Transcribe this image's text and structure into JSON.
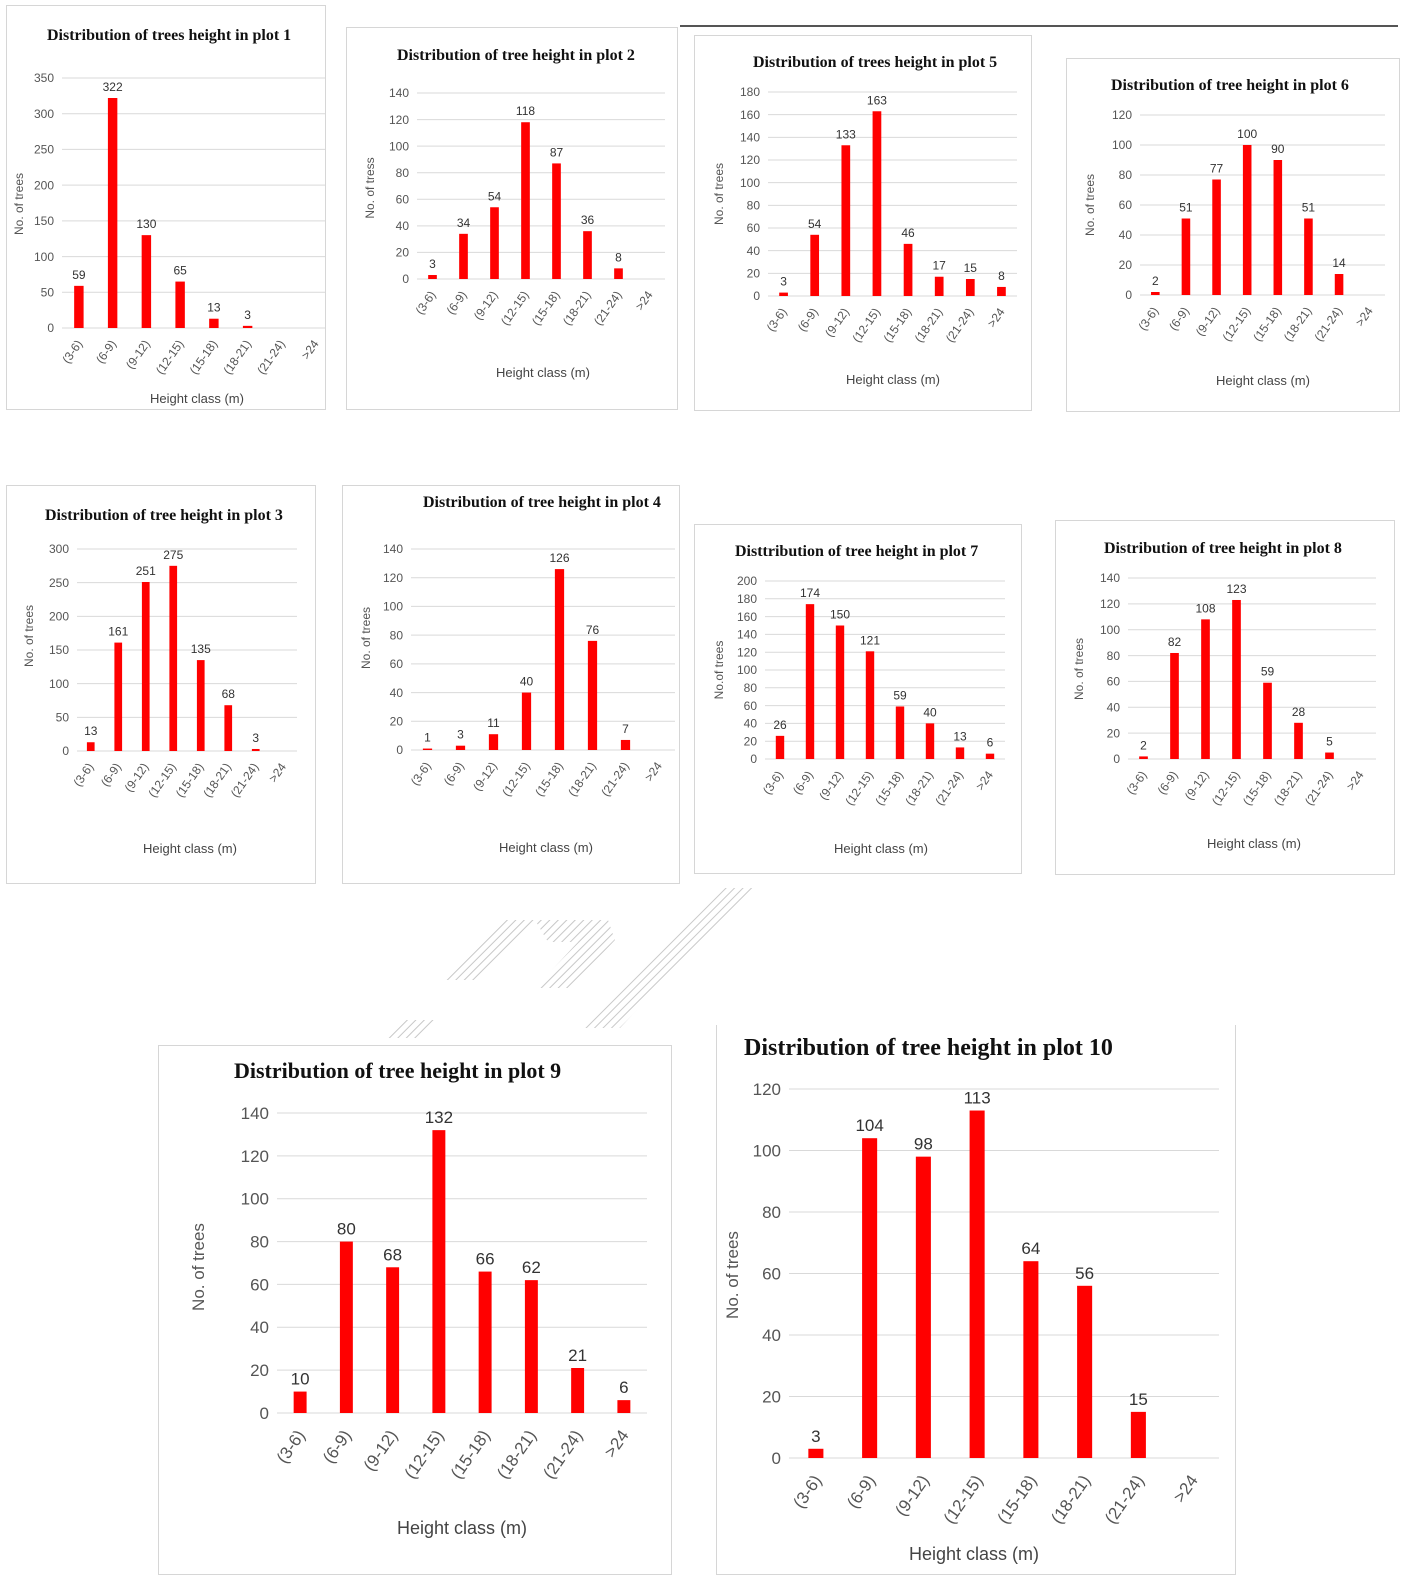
{
  "figure": {
    "bar_color": "#ff0000",
    "categories": [
      "(3-6)",
      "(6-9)",
      "(9-12)",
      "(12-15)",
      "(15-18)",
      "(18-21)",
      "(21-24)",
      ">24"
    ],
    "xlabel": "Height class (m)"
  },
  "chart_data": [
    {
      "type": "bar",
      "title": "Distribution of trees height in plot 1",
      "xlabel": "Height class (m)",
      "ylabel": "No. of trees",
      "categories": [
        "(3-6)",
        "(6-9)",
        "(9-12)",
        "(12-15)",
        "(15-18)",
        "(18-21)",
        "(21-24)",
        ">24"
      ],
      "values": [
        59,
        322,
        130,
        65,
        13,
        3,
        0,
        0
      ],
      "value_labels": [
        "59",
        "322",
        "130",
        "65",
        "13",
        "3",
        "",
        ""
      ],
      "ylim": [
        0,
        350
      ],
      "ytick_step": 50,
      "grid": true
    },
    {
      "type": "bar",
      "title": "Distribution of tree height in plot 2",
      "xlabel": "Height class (m)",
      "ylabel": "No. of tress",
      "categories": [
        "(3-6)",
        "(6-9)",
        "(9-12)",
        "(12-15)",
        "(15-18)",
        "(18-21)",
        "(21-24)",
        ">24"
      ],
      "values": [
        3,
        34,
        54,
        118,
        87,
        36,
        8,
        0
      ],
      "value_labels": [
        "3",
        "34",
        "54",
        "118",
        "87",
        "36",
        "8",
        ""
      ],
      "ylim": [
        0,
        140
      ],
      "ytick_step": 20,
      "grid": true
    },
    {
      "type": "bar",
      "title": "Distribution of trees height in plot 5",
      "xlabel": "Height class (m)",
      "ylabel": "No. of trees",
      "categories": [
        "(3-6)",
        "(6-9)",
        "(9-12)",
        "(12-15)",
        "(15-18)",
        "(18-21)",
        "(21-24)",
        ">24"
      ],
      "values": [
        3,
        54,
        133,
        163,
        46,
        17,
        15,
        8
      ],
      "value_labels": [
        "3",
        "54",
        "133",
        "163",
        "46",
        "17",
        "15",
        "8"
      ],
      "ylim": [
        0,
        180
      ],
      "ytick_step": 20,
      "grid": true
    },
    {
      "type": "bar",
      "title": "Distribution of tree height in plot 6",
      "xlabel": "Height class (m)",
      "ylabel": "No. of trees",
      "categories": [
        "(3-6)",
        "(6-9)",
        "(9-12)",
        "(12-15)",
        "(15-18)",
        "(18-21)",
        "(21-24)",
        ">24"
      ],
      "values": [
        2,
        51,
        77,
        100,
        90,
        51,
        14,
        0
      ],
      "value_labels": [
        "2",
        "51",
        "77",
        "100",
        "90",
        "51",
        "14",
        ""
      ],
      "ylim": [
        0,
        120
      ],
      "ytick_step": 20,
      "grid": true
    },
    {
      "type": "bar",
      "title": "Distribution of tree height in plot 3",
      "xlabel": "Height class (m)",
      "ylabel": "No. of trees",
      "categories": [
        "(3-6)",
        "(6-9)",
        "(9-12)",
        "(12-15)",
        "(15-18)",
        "(18-21)",
        "(21-24)",
        ">24"
      ],
      "values": [
        13,
        161,
        251,
        275,
        135,
        68,
        3,
        0
      ],
      "value_labels": [
        "13",
        "161",
        "251",
        "275",
        "135",
        "68",
        "3",
        ""
      ],
      "ylim": [
        0,
        300
      ],
      "ytick_step": 50,
      "grid": true
    },
    {
      "type": "bar",
      "title": "Distribution of tree height in plot 4",
      "xlabel": "Height class (m)",
      "ylabel": "No. of trees",
      "categories": [
        "(3-6)",
        "(6-9)",
        "(9-12)",
        "(12-15)",
        "(15-18)",
        "(18-21)",
        "(21-24)",
        ">24"
      ],
      "values": [
        1,
        3,
        11,
        40,
        126,
        76,
        7,
        0
      ],
      "value_labels": [
        "1",
        "3",
        "11",
        "40",
        "126",
        "76",
        "7",
        ""
      ],
      "ylim": [
        0,
        140
      ],
      "ytick_step": 20,
      "grid": true
    },
    {
      "type": "bar",
      "title": "Disttribution of tree height in plot 7",
      "xlabel": "Height class (m)",
      "ylabel": "No.of trees",
      "categories": [
        "(3-6)",
        "(6-9)",
        "(9-12)",
        "(12-15)",
        "(15-18)",
        "(18-21)",
        "(21-24)",
        ">24"
      ],
      "values": [
        26,
        174,
        150,
        121,
        59,
        40,
        13,
        6
      ],
      "value_labels": [
        "26",
        "174",
        "150",
        "121",
        "59",
        "40",
        "13",
        "6"
      ],
      "ylim": [
        0,
        200
      ],
      "ytick_step": 20,
      "grid": true
    },
    {
      "type": "bar",
      "title": "Distribution of tree height in plot 8",
      "xlabel": "Height class (m)",
      "ylabel": "No. of trees",
      "categories": [
        "(3-6)",
        "(6-9)",
        "(9-12)",
        "(12-15)",
        "(15-18)",
        "(18-21)",
        "(21-24)",
        ">24"
      ],
      "values": [
        2,
        82,
        108,
        123,
        59,
        28,
        5,
        0
      ],
      "value_labels": [
        "2",
        "82",
        "108",
        "123",
        "59",
        "28",
        "5",
        ""
      ],
      "ylim": [
        0,
        140
      ],
      "ytick_step": 20,
      "grid": true
    },
    {
      "type": "bar",
      "title": "Distribution of tree height in plot 9",
      "xlabel": "Height class (m)",
      "ylabel": "No. of trees",
      "categories": [
        "(3-6)",
        "(6-9)",
        "(9-12)",
        "(12-15)",
        "(15-18)",
        "(18-21)",
        "(21-24)",
        ">24"
      ],
      "values": [
        10,
        80,
        68,
        132,
        66,
        62,
        21,
        6
      ],
      "value_labels": [
        "10",
        "80",
        "68",
        "132",
        "66",
        "62",
        "21",
        "6"
      ],
      "ylim": [
        0,
        140
      ],
      "ytick_step": 20,
      "grid": true
    },
    {
      "type": "bar",
      "title": "Distribution of tree height in plot 10",
      "xlabel": "Height class (m)",
      "ylabel": "No. of trees",
      "categories": [
        "(3-6)",
        "(6-9)",
        "(9-12)",
        "(12-15)",
        "(15-18)",
        "(18-21)",
        "(21-24)",
        ">24"
      ],
      "values": [
        3,
        104,
        98,
        113,
        64,
        56,
        15,
        0
      ],
      "value_labels": [
        "3",
        "104",
        "98",
        "113",
        "64",
        "56",
        "15",
        ""
      ],
      "ylim": [
        0,
        120
      ],
      "ytick_step": 20,
      "grid": true
    }
  ]
}
